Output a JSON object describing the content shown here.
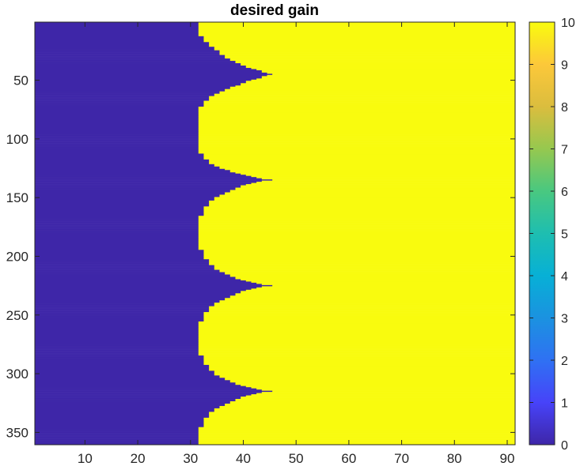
{
  "chart_data": {
    "type": "heatmap",
    "title": "desired gain",
    "xlabel": "",
    "ylabel": "",
    "x_range": [
      1,
      91
    ],
    "y_range": [
      1,
      360
    ],
    "y_reversed": true,
    "x_ticks": [
      10,
      20,
      30,
      40,
      50,
      60,
      70,
      80,
      90
    ],
    "y_ticks": [
      50,
      100,
      150,
      200,
      250,
      300,
      350
    ],
    "low_value": 0,
    "high_value": 10,
    "boundary_description_x_by_y": {
      "y": [
        1,
        10,
        20,
        30,
        35,
        40,
        44,
        45,
        46,
        50,
        55,
        60,
        65,
        70,
        75,
        80,
        90,
        100,
        110,
        115,
        120,
        125,
        130,
        134,
        135,
        136,
        140,
        150,
        160,
        170,
        180,
        190,
        200,
        210,
        215,
        220,
        224,
        225,
        226,
        230,
        240,
        250,
        260,
        270,
        280,
        290,
        300,
        305,
        310,
        314,
        315,
        316,
        320,
        330,
        340,
        350,
        360
      ],
      "x": [
        31,
        31,
        33,
        36,
        38,
        41,
        44,
        45,
        44,
        41,
        38,
        35,
        33,
        32,
        31,
        31,
        31,
        31,
        31,
        32,
        33,
        35,
        39,
        43,
        45,
        43,
        39,
        34,
        32,
        31,
        31,
        31,
        32,
        34,
        36,
        39,
        43,
        45,
        43,
        39,
        34,
        32,
        31,
        31,
        31,
        32,
        34,
        36,
        39,
        43,
        45,
        43,
        39,
        34,
        32,
        31,
        31
      ]
    },
    "colorbar": {
      "ticks": [
        0,
        1,
        2,
        3,
        4,
        5,
        6,
        7,
        8,
        9,
        10
      ],
      "colormap": "parula",
      "colors": [
        "#3e26a8",
        "#4743f9",
        "#2f71f3",
        "#1b92e0",
        "#07b0d6",
        "#1ebeb0",
        "#49c880",
        "#96c84f",
        "#dbbd3e",
        "#fcc83a",
        "#f9fb0e"
      ]
    }
  }
}
